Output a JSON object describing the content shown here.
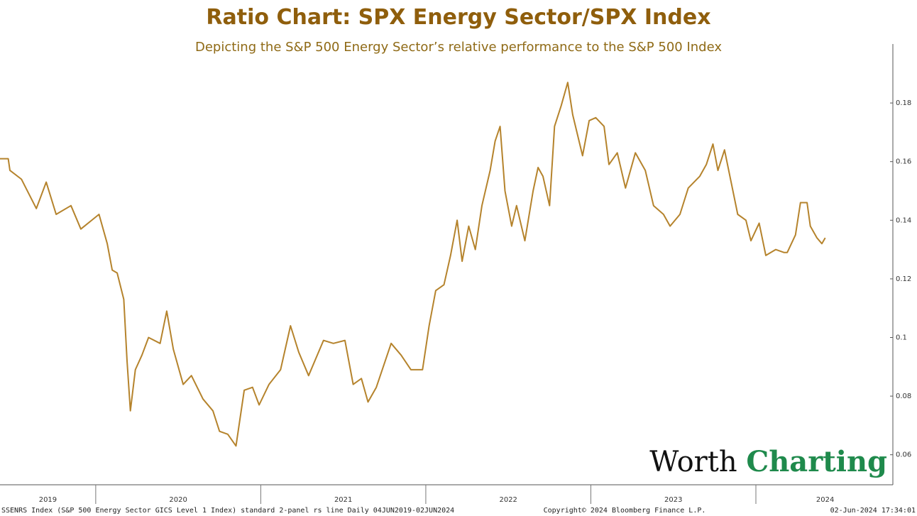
{
  "chart_data": {
    "type": "line",
    "title": "Ratio Chart: SPX Energy Sector/SPX Index",
    "subtitle": "Depicting the S&P 500 Energy Sector’s relative performance to the S&P 500 Index",
    "x": [
      2019.42,
      2019.47,
      2019.48,
      2019.55,
      2019.64,
      2019.7,
      2019.76,
      2019.85,
      2019.91,
      2020.02,
      2020.07,
      2020.1,
      2020.13,
      2020.17,
      2020.19,
      2020.21,
      2020.24,
      2020.28,
      2020.32,
      2020.39,
      2020.43,
      2020.47,
      2020.53,
      2020.58,
      2020.65,
      2020.71,
      2020.75,
      2020.8,
      2020.85,
      2020.9,
      2020.95,
      2020.99,
      2021.05,
      2021.12,
      2021.18,
      2021.23,
      2021.29,
      2021.38,
      2021.44,
      2021.51,
      2021.56,
      2021.61,
      2021.65,
      2021.7,
      2021.79,
      2021.85,
      2021.91,
      2021.98,
      2022.02,
      2022.06,
      2022.11,
      2022.15,
      2022.19,
      2022.22,
      2022.26,
      2022.3,
      2022.34,
      2022.39,
      2022.42,
      2022.45,
      2022.48,
      2022.52,
      2022.55,
      2022.6,
      2022.65,
      2022.68,
      2022.71,
      2022.75,
      2022.78,
      2022.82,
      2022.86,
      2022.89,
      2022.95,
      2022.99,
      2023.03,
      2023.08,
      2023.11,
      2023.16,
      2023.21,
      2023.27,
      2023.33,
      2023.38,
      2023.44,
      2023.48,
      2023.54,
      2023.59,
      2023.66,
      2023.7,
      2023.74,
      2023.77,
      2023.81,
      2023.85,
      2023.89,
      2023.94,
      2023.97,
      2024.02,
      2024.06,
      2024.12,
      2024.17,
      2024.19,
      2024.24,
      2024.27,
      2024.31,
      2024.33,
      2024.37,
      2024.4,
      2024.42
    ],
    "series": [
      {
        "name": "SSENRS Index",
        "color": "#b5832c",
        "values": [
          0.161,
          0.161,
          0.157,
          0.154,
          0.144,
          0.153,
          0.142,
          0.145,
          0.137,
          0.142,
          0.132,
          0.123,
          0.122,
          0.113,
          0.092,
          0.075,
          0.089,
          0.094,
          0.1,
          0.098,
          0.109,
          0.096,
          0.084,
          0.087,
          0.079,
          0.075,
          0.068,
          0.067,
          0.063,
          0.082,
          0.083,
          0.077,
          0.084,
          0.089,
          0.104,
          0.095,
          0.087,
          0.099,
          0.098,
          0.099,
          0.084,
          0.086,
          0.078,
          0.083,
          0.098,
          0.094,
          0.089,
          0.089,
          0.104,
          0.116,
          0.118,
          0.128,
          0.14,
          0.126,
          0.138,
          0.13,
          0.145,
          0.157,
          0.167,
          0.172,
          0.15,
          0.138,
          0.145,
          0.133,
          0.15,
          0.158,
          0.155,
          0.145,
          0.172,
          0.179,
          0.187,
          0.176,
          0.162,
          0.174,
          0.175,
          0.172,
          0.159,
          0.163,
          0.151,
          0.163,
          0.157,
          0.145,
          0.142,
          0.138,
          0.142,
          0.151,
          0.155,
          0.159,
          0.166,
          0.157,
          0.164,
          0.153,
          0.142,
          0.14,
          0.133,
          0.139,
          0.128,
          0.13,
          0.129,
          0.129,
          0.135,
          0.146,
          0.146,
          0.138,
          0.134,
          0.132,
          0.134
        ]
      }
    ],
    "xlim": [
      2019.42,
      2024.83
    ],
    "ylim": [
      0.05,
      0.2
    ],
    "yticks": [
      0.06,
      0.08,
      0.1,
      0.12,
      0.14,
      0.16,
      0.18
    ],
    "xticks": [
      {
        "value": 2019.71,
        "label": "2019"
      },
      {
        "value": 2020.5,
        "label": "2020"
      },
      {
        "value": 2021.5,
        "label": "2021"
      },
      {
        "value": 2022.5,
        "label": "2022"
      },
      {
        "value": 2023.5,
        "label": "2023"
      },
      {
        "value": 2024.42,
        "label": "2024"
      }
    ],
    "xseparators": [
      2020,
      2021,
      2022,
      2023,
      2024
    ],
    "footer_left": "SSENRS Index (S&P 500 Energy Sector GICS Level 1 Index) standard 2-panel rs line  Daily 04JUN2019-02JUN2024",
    "footer_center": "Copyright© 2024 Bloomberg Finance L.P.",
    "footer_right": "02-Jun-2024 17:34:01",
    "logo": {
      "word1": "Worth",
      "word2": "Charting"
    }
  }
}
